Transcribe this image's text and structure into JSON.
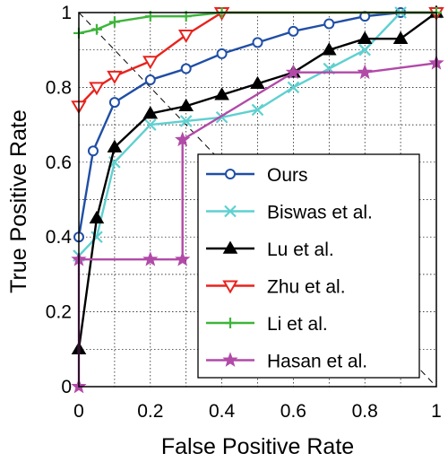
{
  "chart_data": {
    "type": "line",
    "title": "",
    "xlabel": "False Positive Rate",
    "ylabel": "True Positive Rate",
    "xlim": [
      0,
      1
    ],
    "ylim": [
      0,
      1
    ],
    "grid": true,
    "xticks": [
      0,
      0.2,
      0.4,
      0.6,
      0.8,
      1
    ],
    "yticks": [
      0,
      0.2,
      0.4,
      0.6,
      0.8,
      1
    ],
    "xtick_labels": [
      "0",
      "0.2",
      "0.4",
      "0.6",
      "0.8",
      "1"
    ],
    "ytick_labels": [
      "0",
      "0.2",
      "0.4",
      "0.6",
      "0.8",
      "1"
    ],
    "grid_step": 0.1,
    "diagonal": {
      "from": [
        0,
        1
      ],
      "to": [
        1,
        0
      ],
      "style": "dashed"
    },
    "legend_position": "lower-right",
    "series": [
      {
        "name": "Ours",
        "color": "#1f4ea6",
        "marker": "circle",
        "x": [
          0,
          0.04,
          0.1,
          0.2,
          0.3,
          0.4,
          0.5,
          0.6,
          0.7,
          0.8,
          0.9,
          1.0
        ],
        "y": [
          0.4,
          0.63,
          0.76,
          0.82,
          0.85,
          0.89,
          0.92,
          0.95,
          0.97,
          0.99,
          1.0,
          1.0
        ]
      },
      {
        "name": "Biswas et al.",
        "color": "#5fd0d0",
        "marker": "x",
        "x": [
          0,
          0.05,
          0.1,
          0.2,
          0.3,
          0.4,
          0.5,
          0.6,
          0.7,
          0.8,
          0.9,
          1.0
        ],
        "y": [
          0.35,
          0.4,
          0.6,
          0.7,
          0.71,
          0.72,
          0.74,
          0.8,
          0.85,
          0.9,
          1.0,
          1.0
        ]
      },
      {
        "name": "Lu et al.",
        "color": "#000000",
        "marker": "triangle",
        "x": [
          0,
          0.05,
          0.1,
          0.2,
          0.3,
          0.4,
          0.5,
          0.6,
          0.7,
          0.8,
          0.9,
          1.0
        ],
        "y": [
          0.1,
          0.45,
          0.64,
          0.73,
          0.75,
          0.78,
          0.81,
          0.84,
          0.9,
          0.93,
          0.93,
          1.0
        ]
      },
      {
        "name": "Zhu et al.",
        "color": "#e8231d",
        "marker": "triangle-down",
        "x": [
          0,
          0.05,
          0.1,
          0.2,
          0.3,
          0.4,
          1.0
        ],
        "y": [
          0.75,
          0.8,
          0.83,
          0.87,
          0.94,
          1.0,
          1.0
        ]
      },
      {
        "name": "Li et al.",
        "color": "#3db53a",
        "marker": "plus",
        "x": [
          0,
          0.05,
          0.1,
          0.2,
          0.3,
          0.4,
          1.0
        ],
        "y": [
          0.945,
          0.955,
          0.975,
          0.99,
          0.99,
          1.0,
          1.0
        ]
      },
      {
        "name": "Hasan et al.",
        "color": "#b24aa8",
        "marker": "star",
        "x": [
          0,
          0,
          0.2,
          0.29,
          0.29,
          0.6,
          0.8,
          1.0
        ],
        "y": [
          0,
          0.34,
          0.34,
          0.34,
          0.66,
          0.84,
          0.84,
          0.865
        ]
      }
    ]
  }
}
